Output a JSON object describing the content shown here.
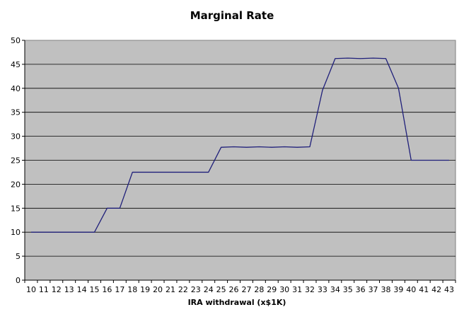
{
  "chart_data": {
    "type": "line",
    "title": "Marginal Rate",
    "xlabel": "IRA withdrawal (x$1K)",
    "ylabel": "",
    "x": [
      "10",
      "11",
      "12",
      "13",
      "14",
      "15",
      "16",
      "17",
      "18",
      "19",
      "20",
      "21",
      "22",
      "23",
      "24",
      "25",
      "26",
      "27",
      "28",
      "29",
      "30",
      "31",
      "32",
      "33",
      "34",
      "35",
      "36",
      "37",
      "38",
      "39",
      "40",
      "41",
      "42",
      "43"
    ],
    "series": [
      {
        "color": "#1f1f7a",
        "values": [
          10,
          10,
          10,
          10,
          10,
          10,
          15,
          15,
          22.5,
          22.5,
          22.5,
          22.5,
          22.5,
          22.5,
          22.5,
          27.7,
          27.8,
          27.7,
          27.8,
          27.7,
          27.8,
          27.7,
          27.8,
          39.6,
          46.2,
          46.3,
          46.2,
          46.3,
          46.2,
          40,
          25,
          25,
          25,
          25
        ]
      }
    ],
    "ylim": [
      0,
      50
    ],
    "yticks": [
      "0",
      "5",
      "10",
      "15",
      "20",
      "25",
      "30",
      "35",
      "40",
      "45",
      "50"
    ],
    "grid": true,
    "plot_background": "#c0c0c0",
    "gridline_color": "#000000"
  }
}
